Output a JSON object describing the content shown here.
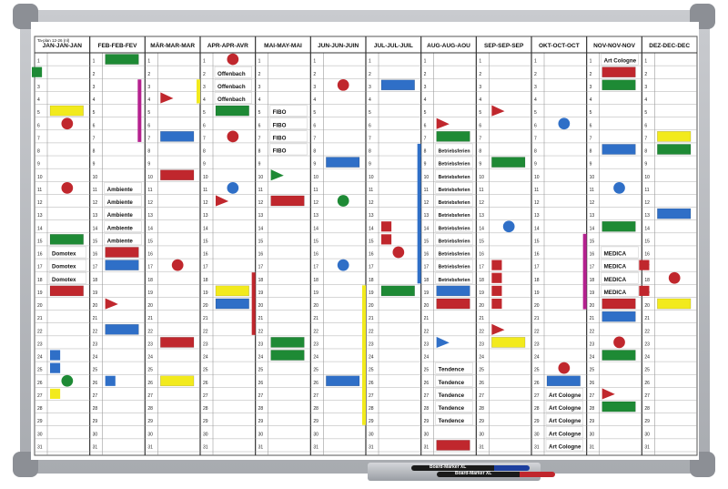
{
  "planner_note": "Ta-plan 12-26 (nl)",
  "months": [
    "JAN-JAN-JAN",
    "FEB-FEB-FEV",
    "MÄR-MAR-MAR",
    "APR-APR-AVR",
    "MAI-MAY-MAI",
    "JUN-JUN-JUIN",
    "JUL-JUL-JUIL",
    "AUG-AUG-AOU",
    "SEP-SEP-SEP",
    "OKT-OCT-OCT",
    "NOV-NOV-NOV",
    "DEZ-DEC-DEC"
  ],
  "day_count": 31,
  "events": [
    {
      "month": 0,
      "day": 16,
      "label": "Domotex"
    },
    {
      "month": 0,
      "day": 17,
      "label": "Domotex"
    },
    {
      "month": 0,
      "day": 18,
      "label": "Domotex"
    },
    {
      "month": 1,
      "day": 11,
      "label": "Ambiente"
    },
    {
      "month": 1,
      "day": 12,
      "label": "Ambiente"
    },
    {
      "month": 1,
      "day": 13,
      "label": "Ambiente"
    },
    {
      "month": 1,
      "day": 14,
      "label": "Ambiente"
    },
    {
      "month": 1,
      "day": 15,
      "label": "Ambiente"
    },
    {
      "month": 3,
      "day": 2,
      "label": "Offenbach"
    },
    {
      "month": 3,
      "day": 3,
      "label": "Offenbach"
    },
    {
      "month": 3,
      "day": 4,
      "label": "Offenbach"
    },
    {
      "month": 4,
      "day": 5,
      "label": "FIBO"
    },
    {
      "month": 4,
      "day": 6,
      "label": "FIBO"
    },
    {
      "month": 4,
      "day": 7,
      "label": "FIBO"
    },
    {
      "month": 4,
      "day": 8,
      "label": "FIBO"
    },
    {
      "month": 7,
      "day": 8,
      "label": "Betriebsferien"
    },
    {
      "month": 7,
      "day": 9,
      "label": "Betriebsferien"
    },
    {
      "month": 7,
      "day": 10,
      "label": "Betriebsferien"
    },
    {
      "month": 7,
      "day": 11,
      "label": "Betriebsferien"
    },
    {
      "month": 7,
      "day": 12,
      "label": "Betriebsferien"
    },
    {
      "month": 7,
      "day": 13,
      "label": "Betriebsferien"
    },
    {
      "month": 7,
      "day": 14,
      "label": "Betriebsferien"
    },
    {
      "month": 7,
      "day": 15,
      "label": "Betriebsferien"
    },
    {
      "month": 7,
      "day": 16,
      "label": "Betriebsferien"
    },
    {
      "month": 7,
      "day": 17,
      "label": "Betriebsferien"
    },
    {
      "month": 7,
      "day": 18,
      "label": "Betriebsferien"
    },
    {
      "month": 7,
      "day": 25,
      "label": "Tendence"
    },
    {
      "month": 7,
      "day": 26,
      "label": "Tendence"
    },
    {
      "month": 7,
      "day": 27,
      "label": "Tendence"
    },
    {
      "month": 7,
      "day": 28,
      "label": "Tendence"
    },
    {
      "month": 7,
      "day": 29,
      "label": "Tendence"
    },
    {
      "month": 9,
      "day": 27,
      "label": "Art Cologne"
    },
    {
      "month": 9,
      "day": 28,
      "label": "Art Cologne"
    },
    {
      "month": 9,
      "day": 29,
      "label": "Art Cologne"
    },
    {
      "month": 9,
      "day": 30,
      "label": "Art Cologne"
    },
    {
      "month": 9,
      "day": 31,
      "label": "Art Cologne"
    },
    {
      "month": 10,
      "day": 1,
      "label": "Art Cologne"
    },
    {
      "month": 10,
      "day": 16,
      "label": "MEDICA"
    },
    {
      "month": 10,
      "day": 17,
      "label": "MEDICA"
    },
    {
      "month": 10,
      "day": 18,
      "label": "MEDICA"
    },
    {
      "month": 10,
      "day": 19,
      "label": "MEDICA"
    }
  ],
  "colors": {
    "red": "#c0272d",
    "green": "#1e8a35",
    "blue": "#2f6fc7",
    "yellow": "#f2ea1d",
    "magenta": "#b5218f",
    "frame": "#b4b7bc",
    "grid": "#555555"
  },
  "magnets": [
    {
      "type": "rect",
      "color": "green",
      "month": 1,
      "day": 1,
      "span": 1
    },
    {
      "type": "rect",
      "color": "yellow",
      "month": 0,
      "day": 5,
      "span": 1
    },
    {
      "type": "circle",
      "color": "red",
      "month": 0,
      "day": 6
    },
    {
      "type": "circle",
      "color": "red",
      "month": 0,
      "day": 11
    },
    {
      "type": "rect",
      "color": "green",
      "month": 0,
      "day": 15,
      "span": 1
    },
    {
      "type": "rect",
      "color": "red",
      "month": 0,
      "day": 19,
      "span": 1
    },
    {
      "type": "square",
      "color": "blue",
      "month": 0,
      "day": 24
    },
    {
      "type": "square",
      "color": "blue",
      "month": 0,
      "day": 25
    },
    {
      "type": "circle",
      "color": "green",
      "month": 0,
      "day": 26
    },
    {
      "type": "square",
      "color": "yellow",
      "month": 0,
      "day": 27
    },
    {
      "type": "square",
      "color": "green",
      "month": 0,
      "day": 2,
      "offset": "left"
    },
    {
      "type": "vbar",
      "color": "magenta",
      "month": 1,
      "day": 3,
      "span": 5
    },
    {
      "type": "rect",
      "color": "red",
      "month": 1,
      "day": 16,
      "span": 1
    },
    {
      "type": "rect",
      "color": "blue",
      "month": 1,
      "day": 17,
      "span": 1
    },
    {
      "type": "tri",
      "color": "red",
      "month": 1,
      "day": 20
    },
    {
      "type": "rect",
      "color": "blue",
      "month": 1,
      "day": 22,
      "span": 1
    },
    {
      "type": "square",
      "color": "blue",
      "month": 1,
      "day": 26
    },
    {
      "type": "tri",
      "color": "red",
      "month": 2,
      "day": 4
    },
    {
      "type": "rect",
      "color": "blue",
      "month": 2,
      "day": 7,
      "span": 1
    },
    {
      "type": "rect",
      "color": "red",
      "month": 2,
      "day": 10,
      "span": 1
    },
    {
      "type": "circle",
      "color": "red",
      "month": 2,
      "day": 17
    },
    {
      "type": "rect",
      "color": "red",
      "month": 2,
      "day": 23,
      "span": 1
    },
    {
      "type": "rect",
      "color": "yellow",
      "month": 2,
      "day": 26,
      "span": 1
    },
    {
      "type": "circle",
      "color": "red",
      "month": 3,
      "day": 1
    },
    {
      "type": "vbar",
      "color": "yellow",
      "month": 3,
      "day": 3,
      "span": 2,
      "offset": "left"
    },
    {
      "type": "rect",
      "color": "green",
      "month": 3,
      "day": 5,
      "span": 1
    },
    {
      "type": "circle",
      "color": "red",
      "month": 3,
      "day": 7
    },
    {
      "type": "circle",
      "color": "blue",
      "month": 3,
      "day": 11
    },
    {
      "type": "tri",
      "color": "red",
      "month": 3,
      "day": 12
    },
    {
      "type": "rect",
      "color": "yellow",
      "month": 3,
      "day": 19,
      "span": 1
    },
    {
      "type": "rect",
      "color": "blue",
      "month": 3,
      "day": 20,
      "span": 1
    },
    {
      "type": "vbar",
      "color": "red",
      "month": 4,
      "day": 18,
      "span": 5,
      "offset": "left"
    },
    {
      "type": "tri",
      "color": "green",
      "month": 4,
      "day": 10
    },
    {
      "type": "rect",
      "color": "red",
      "month": 4,
      "day": 12,
      "span": 1
    },
    {
      "type": "rect",
      "color": "green",
      "month": 4,
      "day": 23,
      "span": 1
    },
    {
      "type": "rect",
      "color": "green",
      "month": 4,
      "day": 24,
      "span": 1
    },
    {
      "type": "circle",
      "color": "red",
      "month": 5,
      "day": 3
    },
    {
      "type": "rect",
      "color": "blue",
      "month": 5,
      "day": 9,
      "span": 1
    },
    {
      "type": "circle",
      "color": "green",
      "month": 5,
      "day": 12
    },
    {
      "type": "circle",
      "color": "blue",
      "month": 5,
      "day": 17
    },
    {
      "type": "rect",
      "color": "blue",
      "month": 5,
      "day": 26,
      "span": 1
    },
    {
      "type": "rect",
      "color": "blue",
      "month": 6,
      "day": 3,
      "span": 1
    },
    {
      "type": "vbar",
      "color": "yellow",
      "month": 6,
      "day": 19,
      "span": 11,
      "offset": "left"
    },
    {
      "type": "square",
      "color": "red",
      "month": 6,
      "day": 14
    },
    {
      "type": "square",
      "color": "red",
      "month": 6,
      "day": 15
    },
    {
      "type": "circle",
      "color": "red",
      "month": 6,
      "day": 16
    },
    {
      "type": "rect",
      "color": "green",
      "month": 6,
      "day": 19,
      "span": 1
    },
    {
      "type": "vbar",
      "color": "blue",
      "month": 7,
      "day": 8,
      "span": 11,
      "offset": "left"
    },
    {
      "type": "tri",
      "color": "red",
      "month": 7,
      "day": 6
    },
    {
      "type": "rect",
      "color": "green",
      "month": 7,
      "day": 7,
      "span": 1
    },
    {
      "type": "rect",
      "color": "blue",
      "month": 7,
      "day": 19,
      "span": 1
    },
    {
      "type": "rect",
      "color": "red",
      "month": 7,
      "day": 20,
      "span": 1
    },
    {
      "type": "tri",
      "color": "blue",
      "month": 7,
      "day": 23
    },
    {
      "type": "rect",
      "color": "green",
      "month": 7,
      "day": 25,
      "span": 1
    },
    {
      "type": "rect",
      "color": "red",
      "month": 7,
      "day": 31,
      "span": 1
    },
    {
      "type": "tri",
      "color": "red",
      "month": 8,
      "day": 5
    },
    {
      "type": "rect",
      "color": "green",
      "month": 8,
      "day": 9,
      "span": 1
    },
    {
      "type": "circle",
      "color": "blue",
      "month": 8,
      "day": 14
    },
    {
      "type": "square",
      "color": "red",
      "month": 8,
      "day": 17
    },
    {
      "type": "square",
      "color": "red",
      "month": 8,
      "day": 18
    },
    {
      "type": "square",
      "color": "red",
      "month": 8,
      "day": 19
    },
    {
      "type": "square",
      "color": "red",
      "month": 8,
      "day": 20
    },
    {
      "type": "tri",
      "color": "red",
      "month": 8,
      "day": 22
    },
    {
      "type": "rect",
      "color": "yellow",
      "month": 8,
      "day": 23,
      "span": 1
    },
    {
      "type": "circle",
      "color": "blue",
      "month": 9,
      "day": 6
    },
    {
      "type": "circle",
      "color": "red",
      "month": 9,
      "day": 25
    },
    {
      "type": "rect",
      "color": "blue",
      "month": 9,
      "day": 26,
      "span": 1
    },
    {
      "type": "rect",
      "color": "red",
      "month": 10,
      "day": 2,
      "span": 1
    },
    {
      "type": "rect",
      "color": "green",
      "month": 10,
      "day": 3,
      "span": 1
    },
    {
      "type": "rect",
      "color": "blue",
      "month": 10,
      "day": 8,
      "span": 1
    },
    {
      "type": "circle",
      "color": "blue",
      "month": 10,
      "day": 11
    },
    {
      "type": "rect",
      "color": "green",
      "month": 10,
      "day": 14,
      "span": 1
    },
    {
      "type": "vbar",
      "color": "magenta",
      "month": 10,
      "day": 15,
      "span": 6,
      "offset": "left"
    },
    {
      "type": "rect",
      "color": "red",
      "month": 10,
      "day": 20,
      "span": 1
    },
    {
      "type": "rect",
      "color": "blue",
      "month": 10,
      "day": 21,
      "span": 1
    },
    {
      "type": "circle",
      "color": "red",
      "month": 10,
      "day": 23
    },
    {
      "type": "rect",
      "color": "green",
      "month": 10,
      "day": 24,
      "span": 1
    },
    {
      "type": "tri",
      "color": "red",
      "month": 10,
      "day": 27
    },
    {
      "type": "rect",
      "color": "green",
      "month": 10,
      "day": 28,
      "span": 1
    },
    {
      "type": "rect",
      "color": "yellow",
      "month": 11,
      "day": 7,
      "span": 1
    },
    {
      "type": "rect",
      "color": "green",
      "month": 11,
      "day": 8,
      "span": 1
    },
    {
      "type": "rect",
      "color": "blue",
      "month": 11,
      "day": 13,
      "span": 1
    },
    {
      "type": "square",
      "color": "red",
      "month": 11,
      "day": 17,
      "offset": "left"
    },
    {
      "type": "square",
      "color": "red",
      "month": 11,
      "day": 19,
      "offset": "left"
    },
    {
      "type": "circle",
      "color": "red",
      "month": 11,
      "day": 18
    },
    {
      "type": "rect",
      "color": "yellow",
      "month": 11,
      "day": 20,
      "span": 1
    }
  ],
  "tray_markers": [
    {
      "color": "#1d3f9e",
      "label": "Board-Marker XL"
    },
    {
      "color": "#c0272d",
      "label": "Board-Marker XL"
    }
  ]
}
